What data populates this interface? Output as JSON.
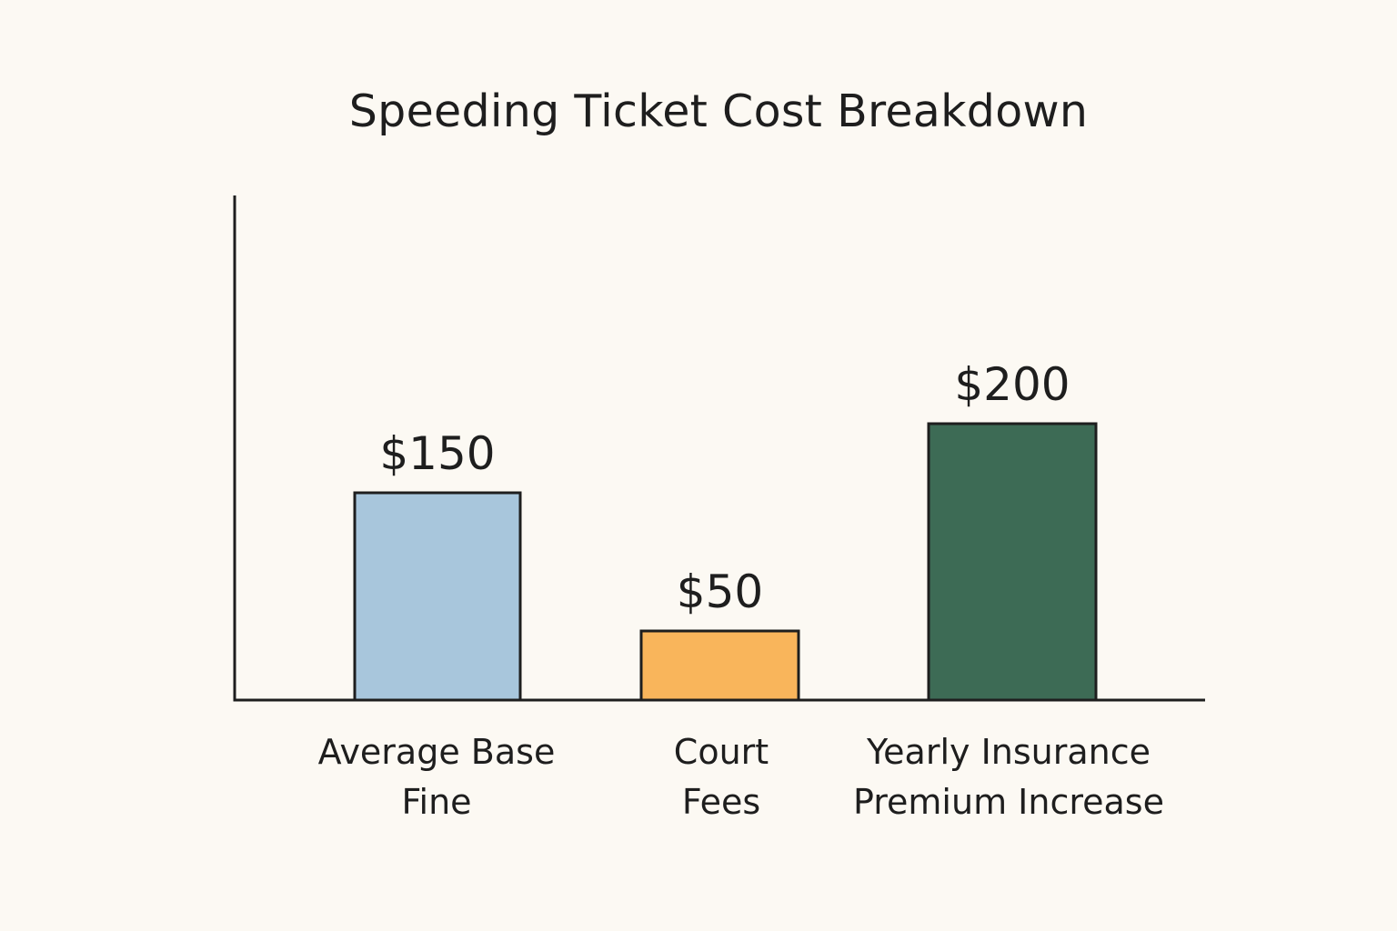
{
  "chart_data": {
    "type": "bar",
    "title": "Speeding Ticket Cost Breakdown",
    "xlabel": "",
    "ylabel": "",
    "ylim": [
      0,
      250
    ],
    "grid": false,
    "legend": "none",
    "categories": [
      [
        "Average Base",
        "Fine"
      ],
      [
        "Court",
        "Fees"
      ],
      [
        "Yearly Insurance",
        "Premium Increase"
      ]
    ],
    "values": [
      150,
      50,
      200
    ],
    "value_labels": [
      "$150",
      "$50",
      "$200"
    ],
    "colors": [
      "#a8c6dc",
      "#f9b55b",
      "#3d6b55"
    ],
    "axis_color": "#1e1e1e"
  }
}
